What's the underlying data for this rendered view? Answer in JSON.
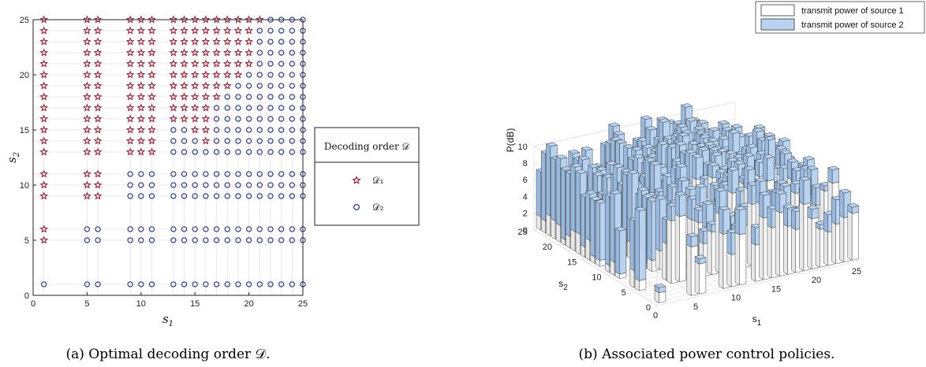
{
  "chart_data": [
    {
      "type": "scatter",
      "xlabel": "s1",
      "ylabel": "s2",
      "xlim": [
        0,
        25
      ],
      "ylim": [
        0,
        25
      ],
      "x_ticks": [
        0,
        5,
        10,
        15,
        20,
        25
      ],
      "y_ticks": [
        0,
        5,
        10,
        15,
        20,
        25
      ],
      "x_values": [
        1,
        5,
        6,
        9,
        10,
        11,
        13,
        14,
        15,
        16,
        17,
        18,
        19,
        20,
        21,
        22,
        23,
        24,
        25
      ],
      "y_values": [
        1,
        5,
        6,
        9,
        10,
        11,
        13,
        14,
        15,
        16,
        17,
        18,
        19,
        20,
        21,
        22,
        23,
        24,
        25
      ],
      "grid": true,
      "legend": {
        "title": "Decoding order 𝒟",
        "placement": "right",
        "entries": [
          {
            "label": "𝒟₁",
            "marker": "star",
            "color": "#a0203a"
          },
          {
            "label": "𝒟₂",
            "marker": "circle",
            "color": "#23338f"
          }
        ]
      },
      "series": [
        {
          "name": "𝒟₁",
          "rule": "s2 > s1 for s2 ≥ 13; s2 ≥ 9 for s1 ≤ 6; s2 ≥ 5 for s1 = 1; near-diagonal boundary above 13"
        },
        {
          "name": "𝒟₂",
          "rule": "complement of 𝒟₁ on the grid"
        }
      ],
      "caption": "(a) Optimal decoding order 𝒟."
    },
    {
      "type": "bar3d",
      "xlabel": "s1",
      "ylabel": "s2",
      "zlabel": "P(dB)",
      "x_ticks": [
        0,
        5,
        10,
        15,
        20,
        25
      ],
      "y_ticks": [
        0,
        5,
        10,
        15,
        20,
        25
      ],
      "z_ticks": [
        0,
        2,
        4,
        6,
        8,
        10
      ],
      "zlim": [
        0,
        10
      ],
      "grid": true,
      "legend": {
        "placement": "top-right",
        "entries": [
          {
            "label": "transmit power of source 1",
            "color": "#ffffff"
          },
          {
            "label": "transmit power of source 2",
            "color": "#b8d3f0"
          }
        ]
      },
      "caption": "(b) Associated power control policies."
    }
  ],
  "colors": {
    "d1": "#a0203a",
    "d2": "#23338f",
    "src1": "#ffffff",
    "src2": "#b8d3f0"
  }
}
